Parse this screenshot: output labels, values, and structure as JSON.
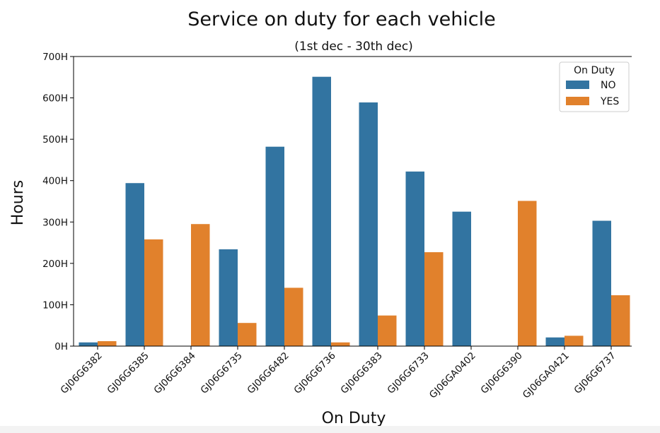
{
  "chart_data": {
    "type": "bar",
    "title": "Service on duty for each vehicle",
    "subtitle": "(1st dec - 30th dec)",
    "xlabel": "On Duty",
    "ylabel": "Hours",
    "ylim": [
      0,
      700
    ],
    "yticks": [
      0,
      100,
      200,
      300,
      400,
      500,
      600,
      700
    ],
    "ytick_labels": [
      "0H",
      "100H",
      "200H",
      "300H",
      "400H",
      "500H",
      "600H",
      "700H"
    ],
    "categories": [
      "GJ06G6382",
      "GJ06G6385",
      "GJ06G6384",
      "GJ06G6735",
      "GJ06G6482",
      "GJ06G6736",
      "GJ06G6383",
      "GJ06G6733",
      "GJ06GA0402",
      "GJ06G6390",
      "GJ06GA0421",
      "GJ06G6737"
    ],
    "legend_title": "On Duty",
    "legend_position": "top-right",
    "grid": false,
    "series": [
      {
        "name": "NO",
        "color": "#3274a1",
        "values": [
          9,
          394,
          null,
          234,
          482,
          651,
          589,
          422,
          325,
          null,
          21,
          303
        ]
      },
      {
        "name": "YES",
        "color": "#e1812c",
        "values": [
          12,
          258,
          295,
          56,
          141,
          9,
          74,
          227,
          null,
          351,
          25,
          123
        ]
      }
    ]
  }
}
